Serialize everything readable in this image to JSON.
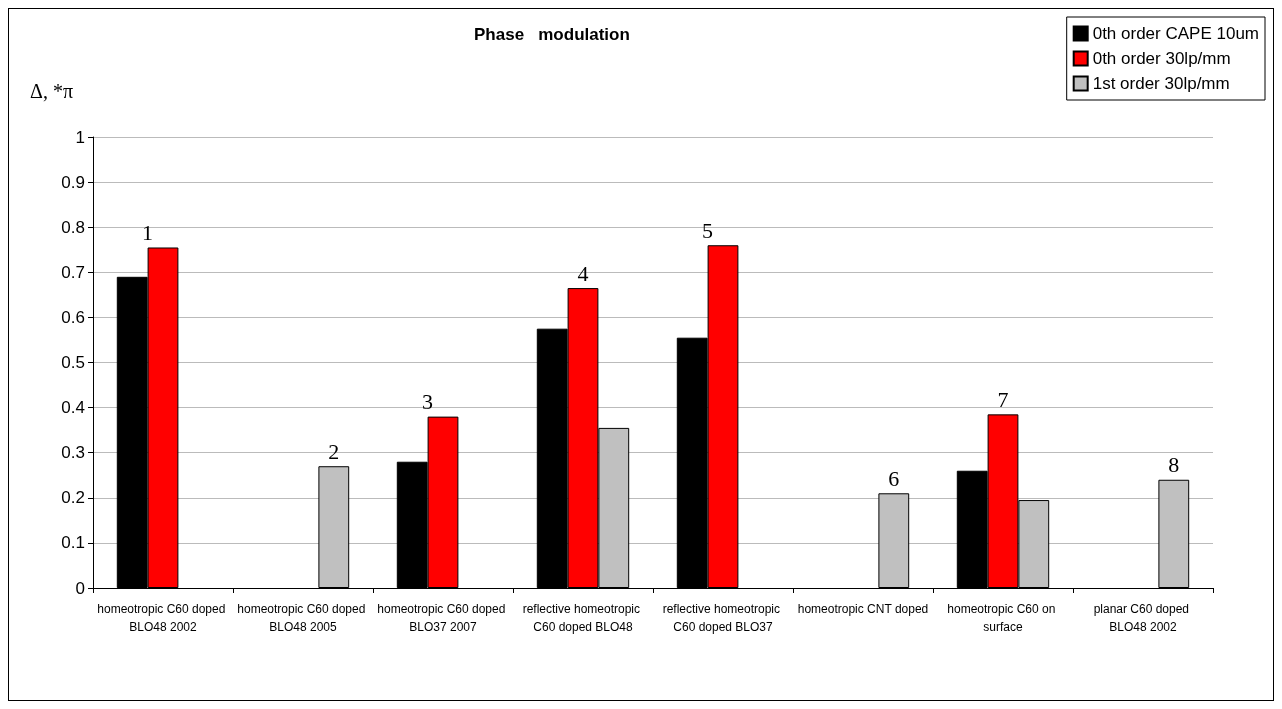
{
  "chart_data": {
    "type": "bar",
    "title": "Phase   modulation",
    "ylabel": "Δ, *π",
    "categories": [
      "homeotropic C60 doped BLO48 2002",
      "homeotropic C60 doped BLO48 2005",
      "homeotropic C60 doped BLO37 2007",
      "reflective homeotropic C60 doped BLO48",
      "reflective homeotropic C60 doped BLO37",
      "homeotropic CNT doped",
      "homeotropic C60 on surface",
      "planar C60 doped BLO48 2002"
    ],
    "series": [
      {
        "name": "0th order CAPE 10um",
        "color": "#000000",
        "values": [
          0.69,
          null,
          0.28,
          0.575,
          0.555,
          null,
          0.26,
          null
        ]
      },
      {
        "name": "0th order 30lp/mm",
        "color": "#ff0000",
        "values": [
          0.755,
          null,
          0.38,
          0.665,
          0.76,
          null,
          0.385,
          null
        ]
      },
      {
        "name": "1st order 30lp/mm",
        "color": "#c0c0c0",
        "values": [
          null,
          0.27,
          null,
          0.355,
          null,
          0.21,
          0.195,
          0.24
        ]
      }
    ],
    "ylim": [
      0,
      1
    ],
    "yticks": [
      0,
      0.1,
      0.2,
      0.3,
      0.4,
      0.5,
      0.6,
      0.7,
      0.8,
      0.9,
      1
    ],
    "grid": "y",
    "legend": "top right",
    "annotations": [
      {
        "text": "1",
        "x": "homeotropic C60 doped BLO48 2002",
        "y": 0.755
      },
      "2",
      {
        "text": "3",
        "x": "homeotropic C60 doped BLO37 2007",
        "y": 0.38
      },
      {
        "text": "4",
        "x": "reflective homeotropic C60 doped BLO48",
        "y": 0.665
      },
      {
        "text": "5",
        "x": "reflective homeotropic C60 doped BLO37",
        "y": 0.76
      },
      "6",
      {
        "text": "7",
        "x": "homeotropic C60 on surface",
        "y": 0.385
      },
      "8"
    ]
  }
}
